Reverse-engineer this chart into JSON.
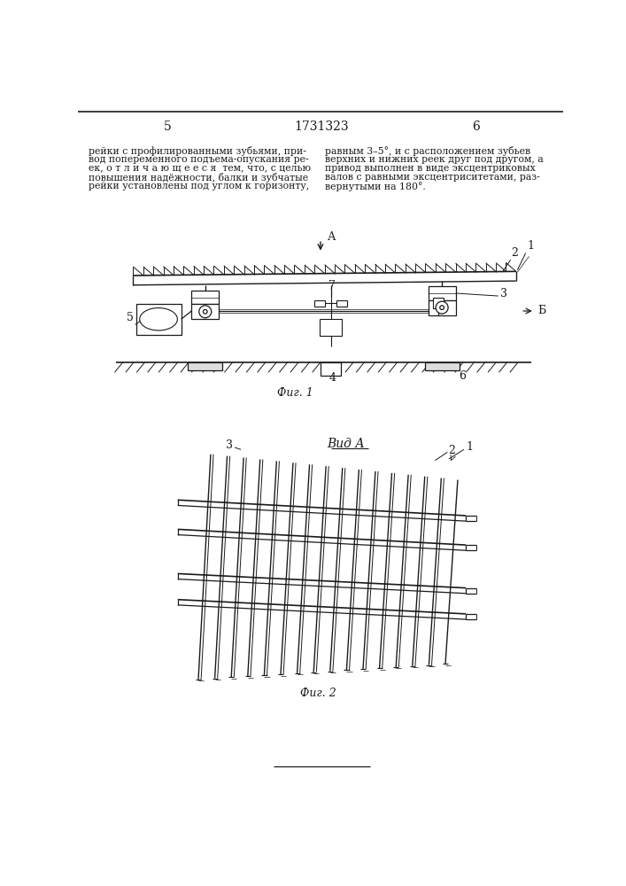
{
  "page_number_left": "5",
  "page_number_right": "6",
  "patent_number": "1731323",
  "text_left": "рейки с профилированными зубьями, при-\nвод попеременного подъема-опускания ре-\nек, о т л и ч а ю щ е е с я  тем, что, с целью\nповышения надёжности, балки и зубчатые\nрейки установлены под углом к горизонту,",
  "text_right": "равным 3–5°, и с расположением зубьев\nверхних и нижних реек друг под другом, а\nпривод выполнен в виде эксцентриковых\nвалов с равными эксцентриситетами, раз-\nвернутыми на 180°.",
  "fig1_caption": "Фиг. 1",
  "fig2_caption": "Фиг. 2",
  "fig2_title": "Вид А",
  "background": "#ffffff"
}
